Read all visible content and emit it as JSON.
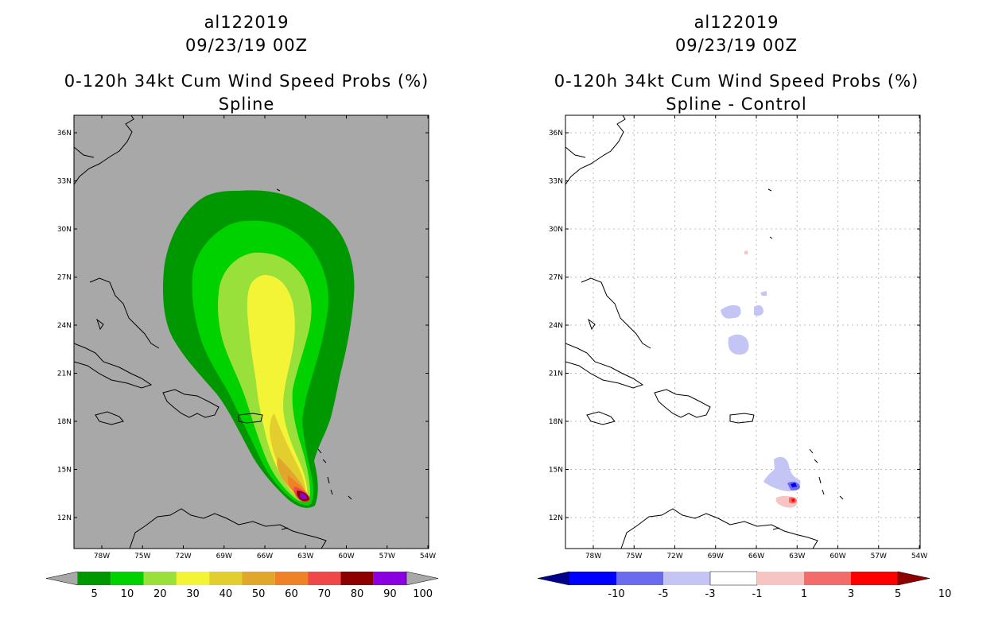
{
  "left": {
    "storm_id": "al122019",
    "datetime": "09/23/19 00Z",
    "product": "0-120h 34kt Cum Wind Speed Probs (%)",
    "subtitle": "Spline",
    "colorbar": {
      "labels": [
        "5",
        "10",
        "20",
        "30",
        "40",
        "50",
        "60",
        "70",
        "80",
        "90",
        "100"
      ],
      "colors": [
        "#a8a8a8",
        "#009800",
        "#00d200",
        "#99e03a",
        "#f4f436",
        "#e2ce2f",
        "#e1a72c",
        "#ef8127",
        "#f04848",
        "#8e0000",
        "#8a00e0",
        "#a8a8a8"
      ]
    }
  },
  "right": {
    "storm_id": "al122019",
    "datetime": "09/23/19 00Z",
    "product": "0-120h 34kt Cum Wind Speed Probs (%)",
    "subtitle": "Spline - Control",
    "colorbar": {
      "labels": [
        "-10",
        "-5",
        "-3",
        "-1",
        "1",
        "3",
        "5",
        "10"
      ],
      "colors": [
        "#00008c",
        "#0000ff",
        "#6b6bef",
        "#c4c4f5",
        "#ffffff",
        "#f7c4c4",
        "#f36b6b",
        "#ff0000",
        "#8c0000"
      ]
    }
  },
  "axes": {
    "lon_labels": [
      "78W",
      "75W",
      "72W",
      "69W",
      "66W",
      "63W",
      "60W",
      "57W",
      "54W"
    ],
    "lat_labels": [
      "36N",
      "33N",
      "30N",
      "27N",
      "24N",
      "21N",
      "18N",
      "15N",
      "12N"
    ]
  }
}
